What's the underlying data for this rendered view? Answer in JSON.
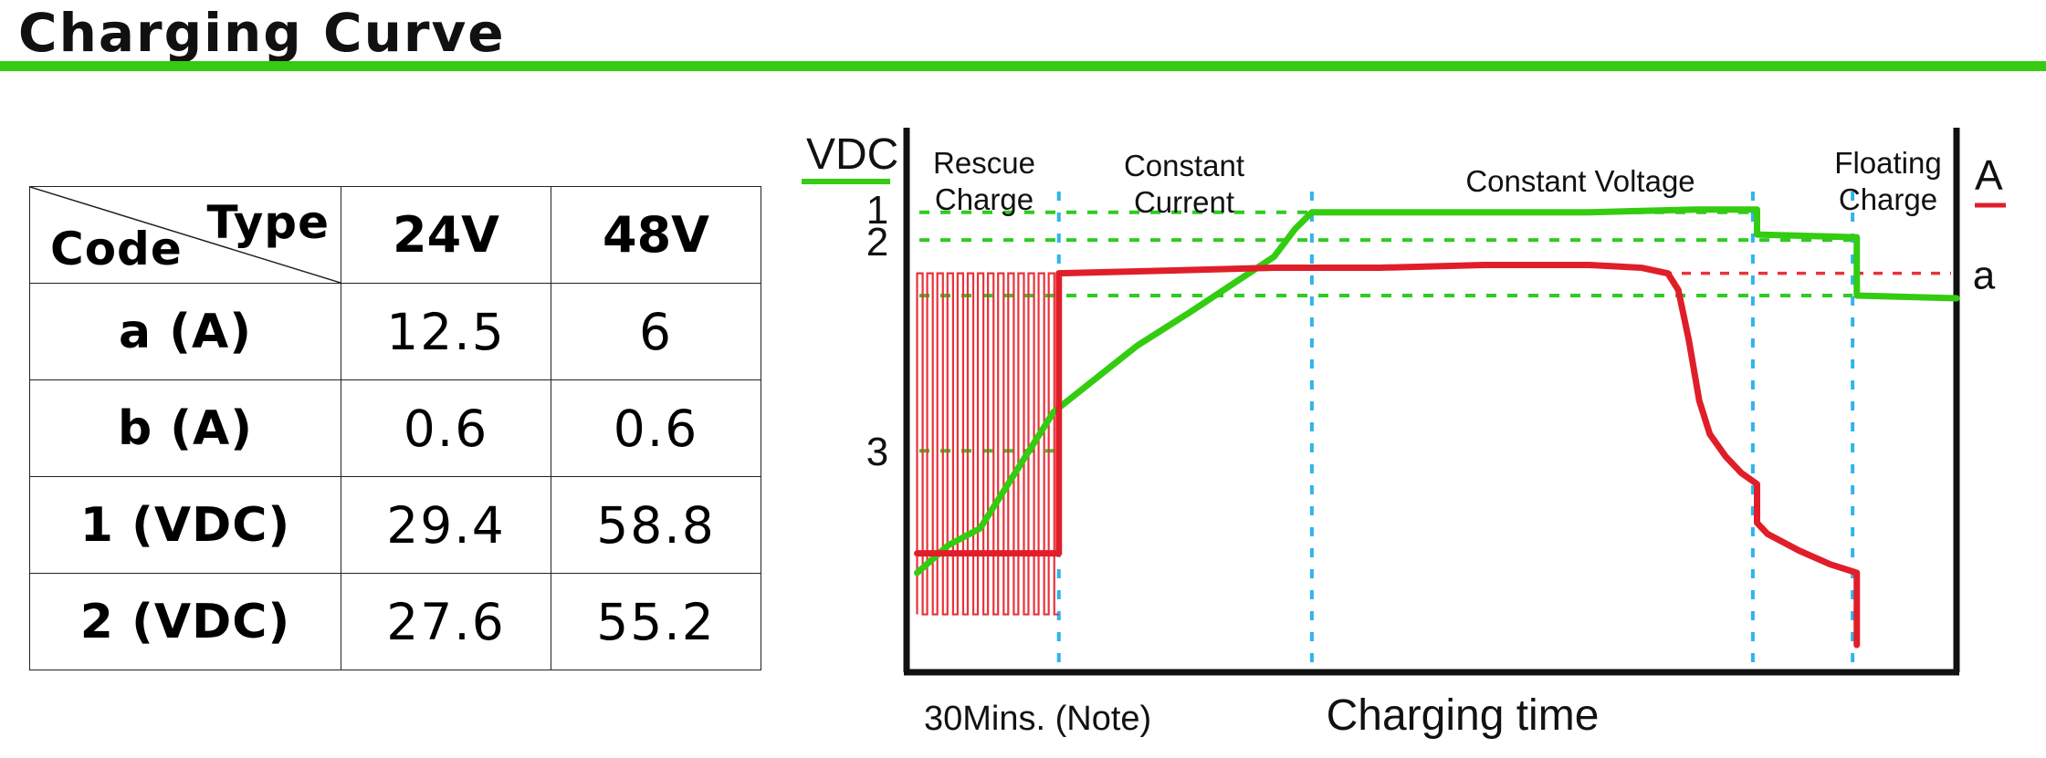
{
  "title": "Charging Curve",
  "colors": {
    "green": "#33cc11",
    "red": "#e01e2a",
    "blue": "#2fb4ee",
    "gridGreen": "#2fcb24",
    "gridRed": "#e8333b"
  },
  "table": {
    "corner_type": "Type",
    "corner_code": "Code",
    "columns": [
      "24V",
      "48V"
    ],
    "rows": [
      {
        "code": "a (A)",
        "values": [
          "12.5",
          "6"
        ]
      },
      {
        "code": "b (A)",
        "values": [
          "0.6",
          "0.6"
        ]
      },
      {
        "code": "1 (VDC)",
        "values": [
          "29.4",
          "58.8"
        ]
      },
      {
        "code": "2 (VDC)",
        "values": [
          "27.6",
          "55.2"
        ]
      }
    ]
  },
  "chart_data": {
    "type": "line",
    "title": "",
    "ylabel_left": "VDC",
    "ylabel_right": "A",
    "xlabel": "Charging time",
    "x_start_label": "30Mins. (Note)",
    "phases": [
      {
        "name_lines": [
          "Rescue",
          "Charge"
        ]
      },
      {
        "name_lines": [
          "Constant",
          "Current"
        ]
      },
      {
        "name_lines": [
          "Constant Voltage"
        ]
      },
      {
        "name_lines": [
          "Floating",
          "Charge"
        ]
      }
    ],
    "left_levels": [
      "1",
      "2",
      "3"
    ],
    "right_levels": [
      "a"
    ],
    "legend": [
      {
        "name": "VDC",
        "color": "green"
      },
      {
        "name": "A",
        "color": "red"
      }
    ],
    "xlim": [
      0,
      100
    ],
    "ylim": [
      0,
      100
    ],
    "level_values": {
      "1": 78,
      "2": 73,
      "3": 35,
      "a": 67,
      "float": 63
    },
    "phase_bounds": [
      14.5,
      38.6,
      80.6,
      90.1
    ],
    "series": [
      {
        "name": "VDC",
        "color": "green",
        "points": [
          [
            1,
            13
          ],
          [
            4,
            18
          ],
          [
            7,
            21
          ],
          [
            10,
            30
          ],
          [
            14,
            42
          ],
          [
            18,
            48
          ],
          [
            22,
            54
          ],
          [
            27,
            60
          ],
          [
            31,
            65
          ],
          [
            35,
            70
          ],
          [
            37,
            75
          ],
          [
            38.6,
            78
          ],
          [
            45,
            78
          ],
          [
            55,
            78
          ],
          [
            65,
            78
          ],
          [
            75,
            78.5
          ],
          [
            81,
            78.5
          ],
          [
            81,
            74
          ],
          [
            90.5,
            73.5
          ],
          [
            90.5,
            63
          ],
          [
            100,
            62.5
          ]
        ]
      },
      {
        "name": "A",
        "color": "red",
        "points": [
          [
            1,
            16.5
          ],
          [
            14.5,
            16.5
          ],
          [
            14.5,
            67
          ],
          [
            25,
            67.5
          ],
          [
            35,
            68
          ],
          [
            45,
            68
          ],
          [
            55,
            68.5
          ],
          [
            65,
            68.5
          ],
          [
            70,
            68
          ],
          [
            72.5,
            67
          ],
          [
            73.5,
            64
          ],
          [
            74.5,
            55
          ],
          [
            75.5,
            44
          ],
          [
            76.5,
            38
          ],
          [
            78,
            34
          ],
          [
            79.5,
            31
          ],
          [
            81,
            29
          ],
          [
            81,
            22
          ],
          [
            82,
            20
          ],
          [
            85,
            17
          ],
          [
            88,
            14.5
          ],
          [
            90.5,
            13
          ],
          [
            90.5,
            0
          ]
        ]
      }
    ],
    "pulse_region": {
      "x_from": 1,
      "x_to": 14.5,
      "y_low": 5.5,
      "y_high": 67,
      "count": 14
    }
  }
}
